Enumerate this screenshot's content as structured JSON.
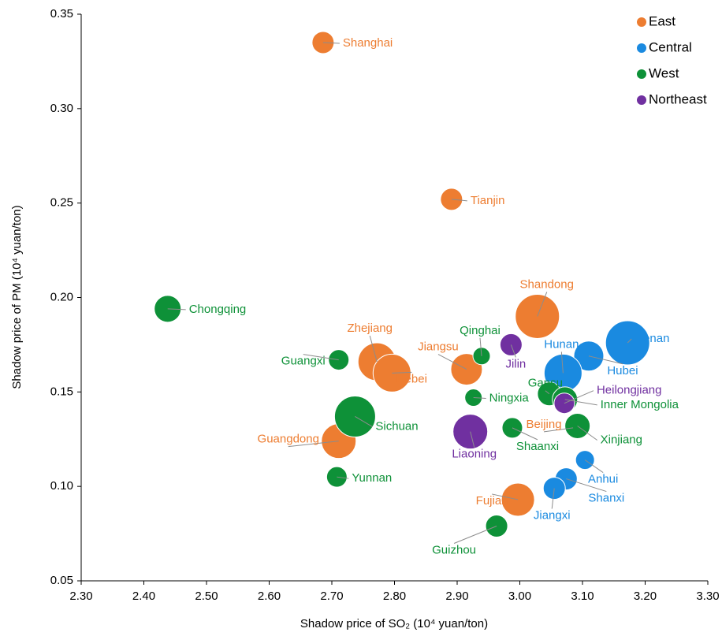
{
  "chart_data": {
    "type": "bubble",
    "xlabel": "Shadow price of SO₂ (10⁴ yuan/ton)",
    "ylabel": "Shadow price of PM (10⁴ yuan/ton)",
    "xlim": [
      2.3,
      3.3
    ],
    "xticks": [
      {
        "value": 2.3,
        "label": "2.30"
      },
      {
        "value": 2.4,
        "label": "2.40"
      },
      {
        "value": 2.5,
        "label": "2.50"
      },
      {
        "value": 2.6,
        "label": "2.60"
      },
      {
        "value": 2.7,
        "label": "2.70"
      },
      {
        "value": 2.8,
        "label": "2.80"
      },
      {
        "value": 2.9,
        "label": "2.90"
      },
      {
        "value": 3.0,
        "label": "3.00"
      },
      {
        "value": 3.1,
        "label": "3.10"
      },
      {
        "value": 3.2,
        "label": "3.20"
      },
      {
        "value": 3.3,
        "label": "3.30"
      }
    ],
    "ylim": [
      0.05,
      0.35
    ],
    "yticks": [
      {
        "value": 0.05,
        "label": "0.05"
      },
      {
        "value": 0.1,
        "label": "0.10"
      },
      {
        "value": 0.15,
        "label": "0.15"
      },
      {
        "value": 0.2,
        "label": "0.20"
      },
      {
        "value": 0.25,
        "label": "0.25"
      },
      {
        "value": 0.3,
        "label": "0.30"
      },
      {
        "value": 0.35,
        "label": "0.35"
      }
    ],
    "grid": false,
    "legend": "top-right",
    "series": [
      {
        "name": "East",
        "color": "#ed7d31",
        "labels": [
          "Shanghai",
          "Tianjin",
          "Shandong",
          "Zhejiang",
          "Hebei",
          "Jiangsu",
          "Beijing",
          "Guangdong",
          "Fujian"
        ],
        "x": [
          2.686,
          2.891,
          3.028,
          2.772,
          2.796,
          2.915,
          3.085,
          2.711,
          2.997
        ],
        "y": [
          0.335,
          0.252,
          0.19,
          0.166,
          0.16,
          0.162,
          0.131,
          0.124,
          0.093
        ],
        "sizes": [
          14,
          14,
          28,
          24,
          24,
          20,
          10,
          22,
          21
        ]
      },
      {
        "name": "Central",
        "color": "#1a8ae0",
        "labels": [
          "Henan",
          "Hubei",
          "Hunan",
          "Anhui",
          "Shanxi",
          "Jiangxi"
        ],
        "x": [
          3.172,
          3.11,
          3.069,
          3.104,
          3.074,
          3.055
        ],
        "y": [
          0.176,
          0.169,
          0.16,
          0.114,
          0.104,
          0.099
        ],
        "sizes": [
          28,
          19,
          24,
          12,
          14,
          14
        ]
      },
      {
        "name": "West",
        "color": "#0e9138",
        "labels": [
          "Chongqing",
          "Qinghai",
          "Guangxi",
          "Gansu",
          "Ningxia",
          "Inner Mongolia",
          "Sichuan",
          "Shaanxi",
          "Xinjiang",
          "Yunnan",
          "Guizhou"
        ],
        "x": [
          2.438,
          2.939,
          2.711,
          3.047,
          2.926,
          3.072,
          2.737,
          2.988,
          3.092,
          2.708,
          2.963
        ],
        "y": [
          0.194,
          0.169,
          0.167,
          0.149,
          0.147,
          0.146,
          0.137,
          0.131,
          0.132,
          0.105,
          0.079
        ],
        "sizes": [
          17,
          11,
          13,
          15,
          11,
          16,
          26,
          13,
          16,
          13,
          14
        ]
      },
      {
        "name": "Northeast",
        "color": "#7030a0",
        "labels": [
          "Jilin",
          "Heilongjiang",
          "Liaoning"
        ],
        "x": [
          2.986,
          3.071,
          2.921
        ],
        "y": [
          0.175,
          0.144,
          0.129
        ],
        "sizes": [
          14,
          13,
          22
        ]
      }
    ]
  }
}
